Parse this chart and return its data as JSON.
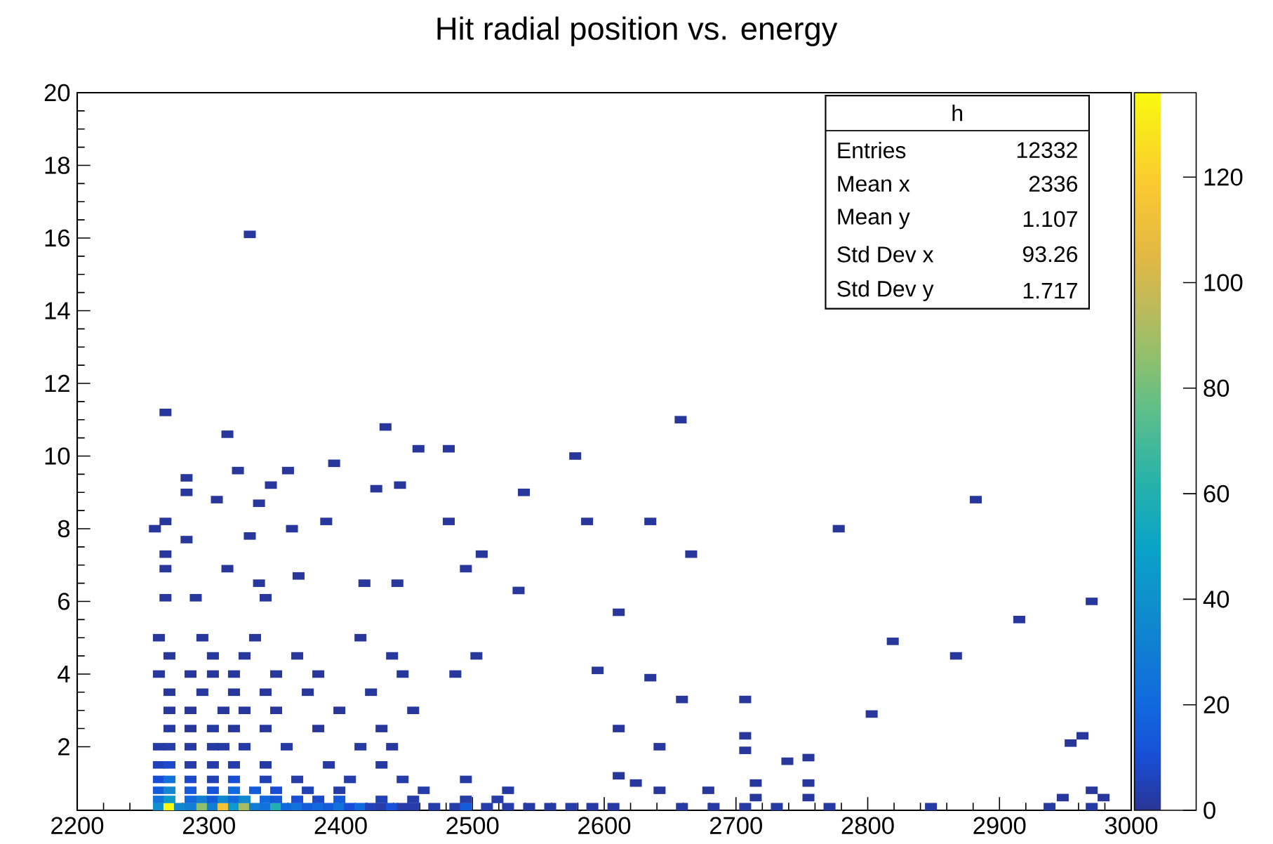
{
  "chart_data": {
    "type": "scatter",
    "title": "Hit radial position vs. energy",
    "xlim": [
      2200,
      3000
    ],
    "xticks": [
      2200,
      2300,
      2400,
      2500,
      2600,
      2700,
      2800,
      2900,
      3000
    ],
    "ylim": [
      0.25,
      20
    ],
    "yticks": [
      2,
      4,
      6,
      8,
      10,
      12,
      14,
      16,
      18,
      20
    ],
    "clim": [
      0,
      136
    ],
    "cticks": [
      0,
      20,
      40,
      60,
      80,
      100,
      120
    ],
    "marker": "square",
    "grid": false,
    "annotations": [
      "h",
      "Entries",
      "12332",
      "Mean x",
      "2336",
      "Mean y",
      "1.107",
      "Std Dev x",
      "93.26",
      "Std Dev y",
      "1.717"
    ],
    "x": [
      2262,
      2270,
      2278,
      2286,
      2295,
      2303,
      2311,
      2319,
      2327,
      2335,
      2343,
      2351,
      2359,
      2367,
      2375,
      2383,
      2391,
      2399,
      2407,
      2415,
      2423,
      2431,
      2439,
      2447,
      2455,
      2471,
      2487,
      2495,
      2511,
      2527,
      2543,
      2559,
      2575,
      2591,
      2607,
      2659,
      2683,
      2707,
      2731,
      2771,
      2848,
      2938,
      2970,
      2262,
      2270,
      2286,
      2295,
      2303,
      2311,
      2319,
      2327,
      2343,
      2351,
      2367,
      2383,
      2399,
      2431,
      2455,
      2495,
      2519,
      2715,
      2755,
      2948,
      2979,
      2262,
      2270,
      2286,
      2303,
      2319,
      2335,
      2351,
      2375,
      2399,
      2463,
      2527,
      2642,
      2679,
      2970,
      2262,
      2270,
      2286,
      2303,
      2319,
      2343,
      2367,
      2407,
      2447,
      2495,
      2611,
      2624,
      2715,
      2755,
      2262,
      2270,
      2286,
      2303,
      2319,
      2343,
      2391,
      2431,
      2739,
      2755,
      2262,
      2270,
      2286,
      2303,
      2311,
      2327,
      2359,
      2415,
      2439,
      2642,
      2707,
      2954,
      2963,
      2270,
      2286,
      2303,
      2319,
      2343,
      2383,
      2431,
      2611,
      2707,
      2803,
      2270,
      2286,
      2311,
      2327,
      2351,
      2399,
      2455,
      2659,
      2707,
      2270,
      2295,
      2319,
      2343,
      2375,
      2423,
      2635,
      2262,
      2286,
      2303,
      2319,
      2351,
      2383,
      2447,
      2487,
      2595,
      2867,
      2270,
      2303,
      2327,
      2367,
      2439,
      2503,
      2819,
      2262,
      2295,
      2335,
      2415,
      2915,
      2611,
      2970,
      2267,
      2290,
      2343,
      2314,
      2267,
      2368,
      2418,
      2443,
      2495,
      2535,
      2338,
      2267,
      2507,
      2666,
      2283,
      2331,
      2259,
      2267,
      2389,
      2363,
      2482,
      2587,
      2635,
      2778,
      2283,
      2306,
      2338,
      2347,
      2427,
      2445,
      2539,
      2882,
      2283,
      2322,
      2360,
      2395,
      2459,
      2482,
      2578,
      2434,
      2314,
      2658,
      2267,
      2331
    ],
    "values": [
      0.35,
      0.35,
      0.35,
      0.35,
      0.35,
      0.35,
      0.35,
      0.35,
      0.35,
      0.35,
      0.35,
      0.35,
      0.35,
      0.35,
      0.35,
      0.35,
      0.35,
      0.35,
      0.35,
      0.35,
      0.35,
      0.35,
      0.35,
      0.35,
      0.35,
      0.35,
      0.35,
      0.35,
      0.35,
      0.35,
      0.35,
      0.35,
      0.35,
      0.35,
      0.35,
      0.35,
      0.35,
      0.35,
      0.35,
      0.35,
      0.35,
      0.35,
      0.35,
      0.55,
      0.55,
      0.55,
      0.55,
      0.55,
      0.55,
      0.55,
      0.55,
      0.55,
      0.55,
      0.55,
      0.55,
      0.55,
      0.55,
      0.55,
      0.55,
      0.55,
      0.6,
      0.6,
      0.6,
      0.6,
      0.8,
      0.8,
      0.8,
      0.8,
      0.8,
      0.8,
      0.8,
      0.8,
      0.8,
      0.8,
      0.8,
      0.8,
      0.8,
      0.8,
      1.1,
      1.1,
      1.1,
      1.1,
      1.1,
      1.1,
      1.1,
      1.1,
      1.1,
      1.1,
      1.2,
      1.0,
      1.0,
      1.0,
      1.5,
      1.5,
      1.5,
      1.5,
      1.5,
      1.5,
      1.5,
      1.5,
      1.6,
      1.7,
      2.0,
      2.0,
      2.0,
      2.0,
      2.0,
      2.0,
      2.0,
      2.0,
      2.0,
      2.0,
      1.9,
      2.1,
      2.3,
      2.5,
      2.5,
      2.5,
      2.5,
      2.5,
      2.5,
      2.5,
      2.5,
      2.3,
      2.9,
      3.0,
      3.0,
      3.0,
      3.0,
      3.0,
      3.0,
      3.0,
      3.3,
      3.3,
      3.5,
      3.5,
      3.5,
      3.5,
      3.5,
      3.5,
      3.9,
      4.0,
      4.0,
      4.0,
      4.0,
      4.0,
      4.0,
      4.0,
      4.0,
      4.1,
      4.5,
      4.5,
      4.5,
      4.5,
      4.5,
      4.5,
      4.5,
      4.9,
      5.0,
      5.0,
      5.0,
      5.0,
      5.5,
      5.7,
      6.0,
      6.1,
      6.1,
      6.1,
      6.9,
      6.9,
      6.7,
      6.5,
      6.5,
      6.9,
      6.3,
      6.5,
      7.3,
      7.3,
      7.3,
      7.7,
      7.8,
      8.0,
      8.2,
      8.2,
      8.0,
      8.2,
      8.2,
      8.2,
      8.0,
      9.0,
      8.8,
      8.7,
      9.2,
      9.1,
      9.2,
      9.0,
      8.8,
      9.4,
      9.6,
      9.6,
      9.8,
      10.2,
      10.2,
      10.0,
      10.8,
      10.6,
      11.0,
      11.2,
      16.1
    ],
    "cvalues": [
      40,
      136,
      35,
      30,
      85,
      30,
      115,
      45,
      90,
      30,
      25,
      60,
      20,
      25,
      15,
      20,
      15,
      25,
      10,
      20,
      5,
      3,
      12,
      3,
      3,
      3,
      3,
      15,
      3,
      3,
      2,
      2,
      3,
      2,
      2,
      2,
      2,
      2,
      2,
      2,
      2,
      2,
      2,
      25,
      45,
      20,
      30,
      15,
      35,
      20,
      35,
      20,
      15,
      10,
      8,
      15,
      5,
      3,
      3,
      3,
      1,
      1,
      1,
      1,
      15,
      35,
      15,
      12,
      20,
      15,
      10,
      5,
      3,
      3,
      2,
      1,
      1,
      1,
      10,
      25,
      8,
      5,
      10,
      5,
      3,
      3,
      3,
      2,
      1,
      1,
      1,
      1,
      5,
      8,
      3,
      3,
      3,
      2,
      2,
      2,
      1,
      1,
      2,
      3,
      2,
      2,
      2,
      2,
      2,
      2,
      1,
      1,
      1,
      1,
      1,
      2,
      1,
      2,
      1,
      1,
      1,
      1,
      1,
      1,
      1,
      1,
      1,
      1,
      1,
      1,
      1,
      1,
      1,
      1,
      1,
      1,
      1,
      1,
      1,
      1,
      1,
      1,
      1,
      1,
      1,
      1,
      1,
      1,
      1,
      1,
      1,
      1,
      1,
      1,
      1,
      1,
      1,
      1,
      1,
      1,
      1,
      1,
      1,
      1,
      1,
      1,
      1,
      1,
      1,
      1,
      1,
      1,
      1,
      1,
      1,
      1,
      1,
      1,
      1,
      1,
      1,
      1,
      1,
      1,
      1,
      1,
      1,
      1,
      1,
      1,
      1,
      1,
      1,
      1,
      1,
      1,
      1,
      1,
      1,
      1,
      1,
      1,
      1,
      1,
      1,
      1,
      1,
      1,
      1
    ]
  }
}
